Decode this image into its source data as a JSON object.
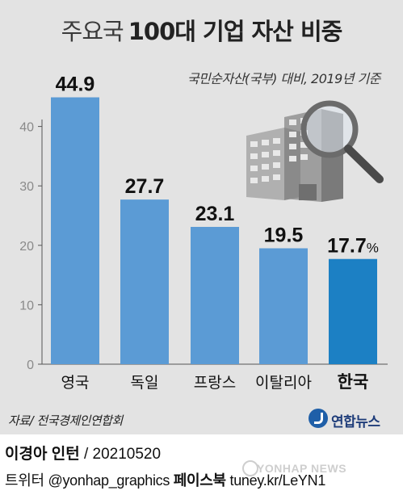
{
  "header": {
    "title_prefix": "주요국",
    "title_main": "100대 기업 자산 비중",
    "subtitle": "국민순자산(국부) 대비, 2019년 기준"
  },
  "chart_data": {
    "type": "bar",
    "title": "주요국 100대 기업 자산 비중",
    "subtitle": "국민순자산(국부) 대비, 2019년 기준",
    "categories": [
      "영국",
      "독일",
      "프랑스",
      "이탈리아",
      "한국"
    ],
    "values": [
      44.9,
      27.7,
      23.1,
      19.5,
      17.7
    ],
    "value_labels": [
      "44.9",
      "27.7",
      "23.1",
      "19.5",
      "17.7%"
    ],
    "highlight_index": 4,
    "yticks": [
      0,
      10,
      20,
      30,
      40
    ],
    "ylim": [
      0,
      50
    ],
    "grid": false,
    "colors": {
      "bar": "#5b9bd5",
      "bar_highlight": "#1c80c4",
      "axis": "#555555"
    }
  },
  "footer": {
    "source": "자료/ 전국경제인연합회",
    "logo_text": "연합뉴스",
    "credit_name": "이경아 인턴",
    "credit_rest": " / 20210520",
    "social_handle": "트위터 @yonhap_graphics",
    "social_page_label": "페이스북",
    "social_page_url": "tuney.kr/LeYN1",
    "watermark": "YONHAP NEWS"
  }
}
